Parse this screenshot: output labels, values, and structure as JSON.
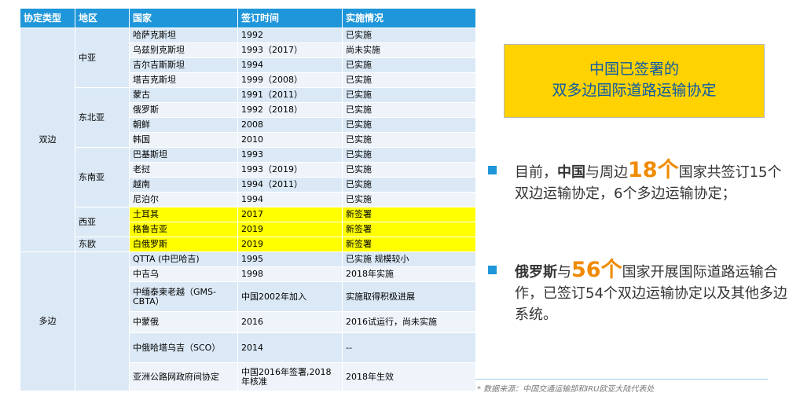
{
  "table": {
    "headers": [
      "协定类型",
      "地区",
      "国家",
      "签订时间",
      "实施情况"
    ],
    "types": [
      "双边",
      "多边"
    ],
    "regions": [
      "中亚",
      "东北亚",
      "东南亚",
      "西亚",
      "东欧"
    ],
    "bilateral": [
      {
        "country": "哈萨克斯坦",
        "date": "1992",
        "status": "已实施"
      },
      {
        "country": "乌兹别克斯坦",
        "date": "1993（2017）",
        "status": "尚未实施"
      },
      {
        "country": "吉尔吉斯斯坦",
        "date": "1994",
        "status": "已实施"
      },
      {
        "country": "塔吉克斯坦",
        "date": "1999（2008）",
        "status": "已实施"
      },
      {
        "country": "蒙古",
        "date": "1991（2011）",
        "status": "已实施"
      },
      {
        "country": "俄罗斯",
        "date": "1992（2018）",
        "status": "已实施"
      },
      {
        "country": "朝鲜",
        "date": "2008",
        "status": "已实施"
      },
      {
        "country": "韩国",
        "date": "2010",
        "status": "已实施"
      },
      {
        "country": "巴基斯坦",
        "date": "1993",
        "status": "已实施"
      },
      {
        "country": "老挝",
        "date": "1993（2019）",
        "status": "已实施"
      },
      {
        "country": "越南",
        "date": "1994（2011）",
        "status": "已实施"
      },
      {
        "country": "尼泊尔",
        "date": "1994",
        "status": "已实施"
      },
      {
        "country": "土耳其",
        "date": "2017",
        "status": "新签署"
      },
      {
        "country": "格鲁吉亚",
        "date": "2019",
        "status": "新签署"
      },
      {
        "country": "白俄罗斯",
        "date": "2019",
        "status": "新签署"
      }
    ],
    "multilateral": [
      {
        "country": "QTTA (中巴哈吉)",
        "date": "1995",
        "status": "已实施 规模较小"
      },
      {
        "country": "中吉乌",
        "date": "1998",
        "status": "2018年实施"
      },
      {
        "country": "中缅泰柬老越（GMS-CBTA）",
        "date": "中国2002年加入",
        "status": "实施取得积极进展"
      },
      {
        "country": "中蒙俄",
        "date": "2016",
        "status": "2016试运行，尚未实施"
      },
      {
        "country": "中俄哈塔乌吉（SCO）",
        "date": "2014",
        "status": "--"
      },
      {
        "country": "亚洲公路网政府间协定",
        "date": "中国2016年签署,2018年核准",
        "status": "2018年生效"
      }
    ]
  },
  "title_box": {
    "line1": "中国已签署的",
    "line2": "双多边国际道路运输协定"
  },
  "bullet1": {
    "p1": "目前，",
    "bold": "中国",
    "p2": "与周边",
    "num": "18个",
    "p3": "国家共签订15个双边运输协定，6个多边运输协定；"
  },
  "bullet2": {
    "bold": "俄罗斯",
    "p1": "与",
    "num": "56个",
    "p2": "国家开展国际道路运输合作，已签订54个双边运输协定以及其他多边系统。"
  },
  "source": "* 数据来源：中国交通运输部和IRU欧亚大陆代表处",
  "colors": {
    "header": "#1e96d9",
    "highlight": "#ffff00",
    "title_bg": "#ffd200",
    "accent_num": "#f08a00"
  }
}
